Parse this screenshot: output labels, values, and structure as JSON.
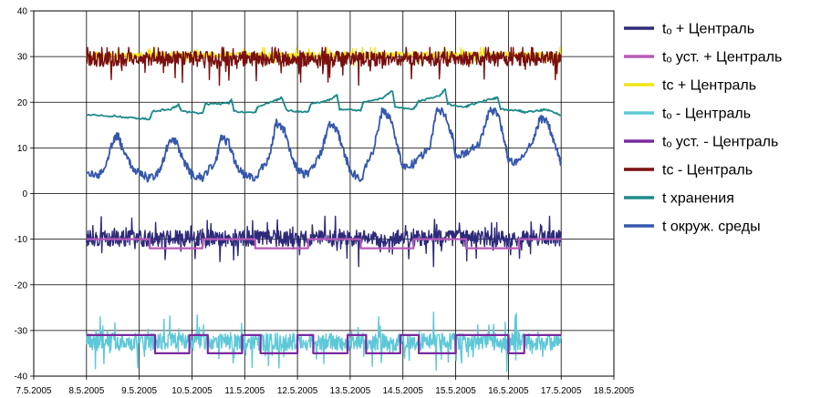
{
  "chart_data": {
    "type": "line",
    "title": "",
    "xlabel": "",
    "ylabel": "",
    "ylim": [
      -40,
      40
    ],
    "y_ticks": [
      -40,
      -30,
      -20,
      -10,
      0,
      10,
      20,
      30,
      40
    ],
    "x_ticks": [
      "7.5.2005",
      "8.5.2005",
      "9.5.2005",
      "10.5.2005",
      "11.5.2005",
      "12.5.2005",
      "13.5.2005",
      "14.5.2005",
      "15.5.2005",
      "16.5.2005",
      "17.5.2005",
      "18.5.2005"
    ],
    "x_range_days": [
      7,
      18
    ],
    "grid": true,
    "legend_position": "right",
    "series": [
      {
        "name": "tₒ + Централь",
        "color": "#2e2a7a",
        "kind": "noisy-band",
        "x_days": [
          8.0,
          17.0
        ],
        "mean": -9.8,
        "amplitude": 3.0,
        "range": [
          -16,
          -5
        ]
      },
      {
        "name": "tₒ уст. + Централь",
        "color": "#b85ab8",
        "kind": "step",
        "x": [
          8.0,
          9.2,
          9.2,
          10.2,
          10.2,
          11.2,
          11.2,
          12.2,
          12.2,
          13.2,
          13.2,
          14.2,
          14.2,
          15.2,
          15.2,
          16.2,
          16.2,
          17.0
        ],
        "y": [
          -10,
          -10,
          -12,
          -12,
          -10,
          -10,
          -12,
          -12,
          -10,
          -10,
          -12,
          -12,
          -10,
          -10,
          -12,
          -12,
          -10,
          -10
        ]
      },
      {
        "name": "tᴄ + Централь",
        "color": "#f0e614",
        "kind": "noisy-band",
        "x_days": [
          8.0,
          17.0
        ],
        "mean": 30.3,
        "amplitude": 1.2,
        "range": [
          25,
          32
        ]
      },
      {
        "name": "tₒ - Централь",
        "color": "#5ec8d8",
        "kind": "noisy-band",
        "x_days": [
          8.0,
          17.0
        ],
        "mean": -32.5,
        "amplitude": 3.2,
        "range": [
          -40,
          -26
        ]
      },
      {
        "name": "tₒ уст. - Централь",
        "color": "#7a2aa0",
        "kind": "step",
        "x": [
          8.0,
          9.3,
          9.3,
          9.95,
          9.95,
          10.3,
          10.3,
          10.95,
          10.95,
          11.3,
          11.3,
          12.0,
          12.0,
          12.3,
          12.3,
          12.95,
          12.95,
          13.3,
          13.3,
          13.95,
          13.95,
          14.3,
          14.3,
          15.0,
          15.0,
          16.0,
          16.0,
          16.3,
          16.3,
          17.0
        ],
        "y": [
          -31,
          -31,
          -35,
          -35,
          -31,
          -31,
          -35,
          -35,
          -31,
          -31,
          -35,
          -35,
          -31,
          -31,
          -35,
          -35,
          -31,
          -31,
          -35,
          -35,
          -31,
          -31,
          -35,
          -35,
          -31,
          -31,
          -35,
          -35,
          -31,
          -31
        ]
      },
      {
        "name": "tᴄ - Централь",
        "color": "#7a0f0f",
        "kind": "noisy-band",
        "x_days": [
          8.0,
          17.0
        ],
        "mean": 29.5,
        "amplitude": 2.8,
        "range": [
          19,
          32
        ]
      },
      {
        "name": "t хранения",
        "color": "#1e8a8a",
        "kind": "line",
        "x": [
          8.0,
          8.5,
          8.9,
          9.2,
          9.25,
          9.6,
          9.75,
          9.8,
          10.2,
          10.25,
          10.7,
          10.75,
          10.8,
          11.2,
          11.25,
          11.6,
          11.7,
          11.8,
          12.2,
          12.25,
          12.6,
          12.75,
          12.8,
          13.2,
          13.25,
          13.6,
          13.8,
          13.85,
          14.2,
          14.3,
          14.7,
          14.8,
          14.85,
          15.2,
          15.25,
          15.7,
          15.8,
          15.85,
          16.2,
          16.3,
          16.6,
          16.7,
          17.0
        ],
        "y": [
          17.2,
          17.0,
          16.5,
          16.3,
          18.0,
          18.5,
          19.5,
          18.0,
          17.5,
          19.5,
          19.8,
          20.5,
          18.0,
          17.8,
          19.0,
          20.5,
          21.0,
          18.2,
          17.8,
          19.5,
          20.5,
          21.5,
          18.5,
          18.2,
          20.0,
          20.8,
          22.5,
          19.0,
          18.5,
          20.2,
          21.5,
          22.8,
          19.5,
          19.0,
          19.3,
          20.8,
          21.0,
          18.5,
          18.2,
          17.8,
          18.2,
          18.5,
          17.2
        ]
      },
      {
        "name": "t окруж. среды",
        "color": "#3558ad",
        "kind": "line",
        "x": [
          8.0,
          8.2,
          8.35,
          8.5,
          8.6,
          8.7,
          8.85,
          9.0,
          9.2,
          9.4,
          9.55,
          9.7,
          9.85,
          10.0,
          10.2,
          10.45,
          10.55,
          10.7,
          10.85,
          11.0,
          11.2,
          11.45,
          11.6,
          11.75,
          11.9,
          12.0,
          12.2,
          12.45,
          12.6,
          12.75,
          12.9,
          13.0,
          13.2,
          13.45,
          13.6,
          13.75,
          13.9,
          14.0,
          14.2,
          14.5,
          14.65,
          14.8,
          14.95,
          15.0,
          15.2,
          15.45,
          15.65,
          15.8,
          15.95,
          16.0,
          16.2,
          16.45,
          16.6,
          16.75,
          16.9,
          17.0
        ],
        "y": [
          4.5,
          3.8,
          5.5,
          11.5,
          12.8,
          9.0,
          6.0,
          4.5,
          3.2,
          5.0,
          11.0,
          11.5,
          7.0,
          4.0,
          3.5,
          7.0,
          12.5,
          11.0,
          6.0,
          3.8,
          3.5,
          7.5,
          15.5,
          14.0,
          8.0,
          5.0,
          4.0,
          9.0,
          15.5,
          14.0,
          8.5,
          5.0,
          3.0,
          10.0,
          18.0,
          17.0,
          10.0,
          6.0,
          6.5,
          10.0,
          18.5,
          17.5,
          12.0,
          8.0,
          9.0,
          11.0,
          18.5,
          17.5,
          10.5,
          7.0,
          7.0,
          11.0,
          16.5,
          15.5,
          10.0,
          6.5
        ]
      }
    ]
  }
}
